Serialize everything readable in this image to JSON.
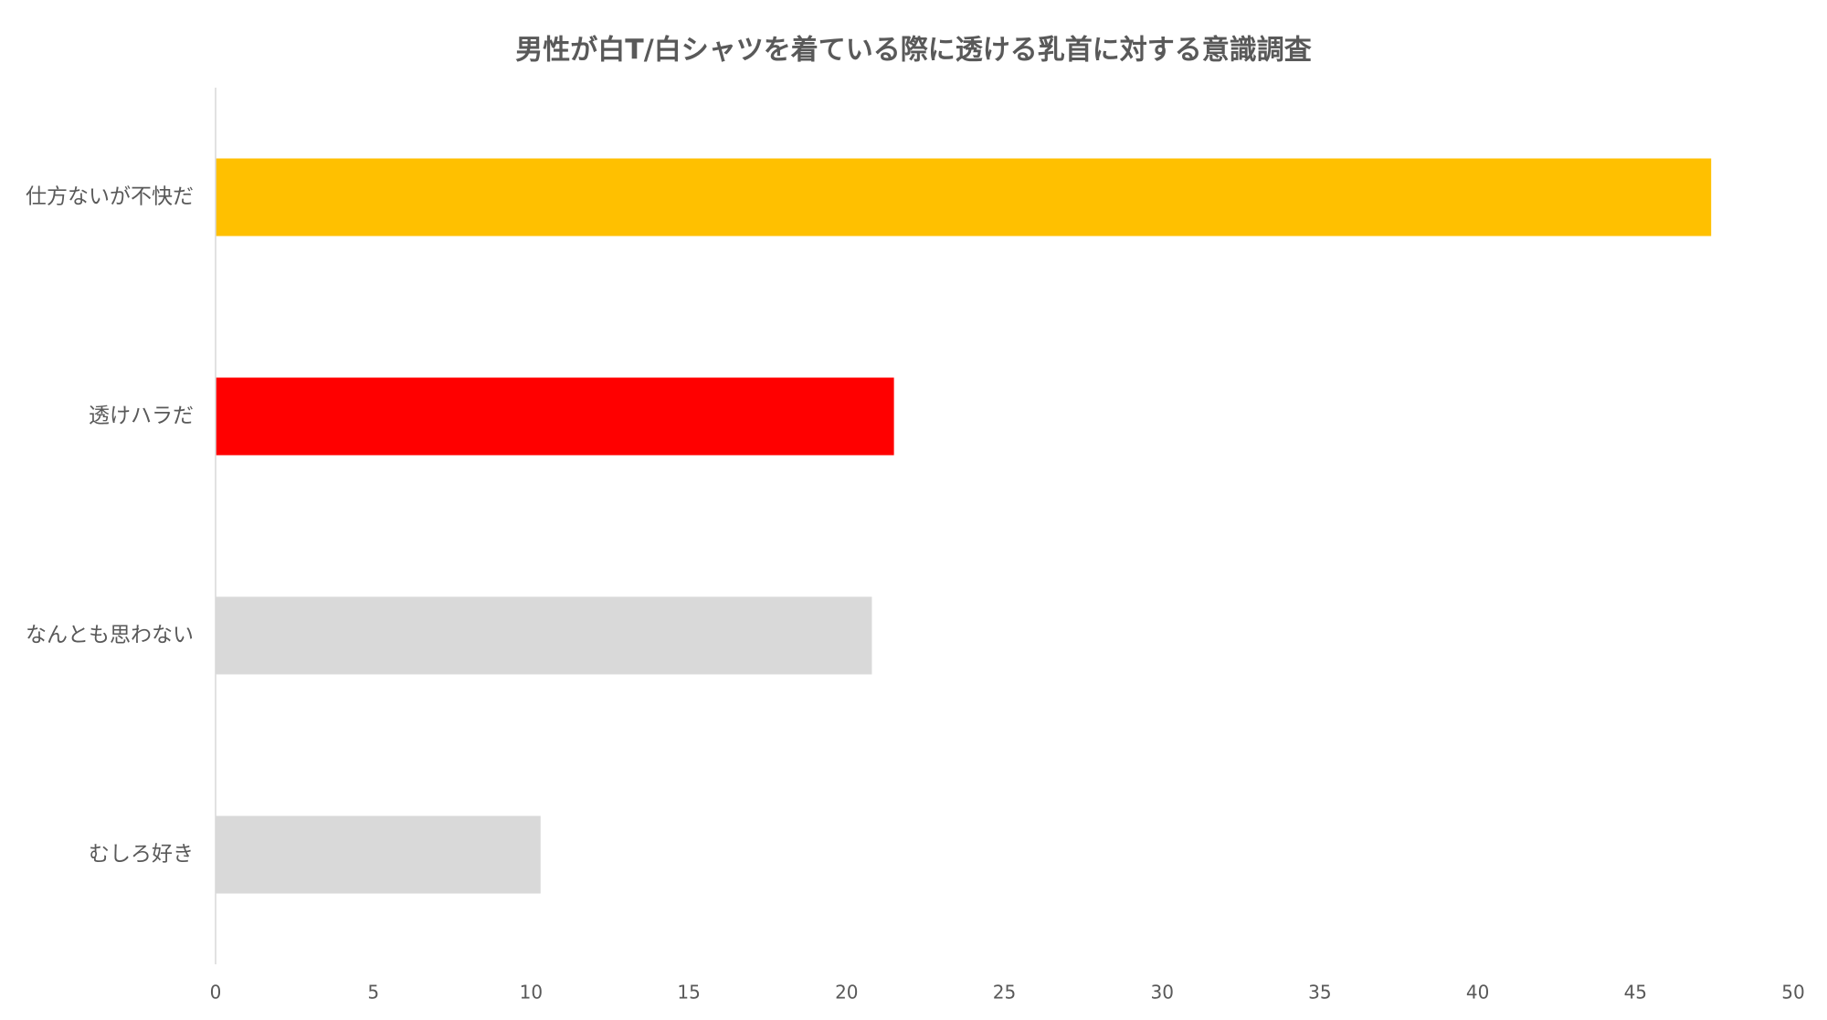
{
  "chart_data": {
    "type": "barh",
    "title": "男性が白T/白シャツを着ている際に透ける乳首に対する意識調査",
    "categories": [
      "仕方ないが不快だ",
      "透けハラだ",
      "なんとも思わない",
      "むしろ好き"
    ],
    "values": [
      47.4,
      21.5,
      20.8,
      10.3
    ],
    "colors": [
      "#ffc000",
      "#ff0000",
      "#d9d9d9",
      "#d9d9d9"
    ],
    "xlim": [
      0,
      50
    ],
    "xticks": [
      0,
      5,
      10,
      15,
      20,
      25,
      30,
      35,
      40,
      45,
      50
    ],
    "grid": false
  }
}
